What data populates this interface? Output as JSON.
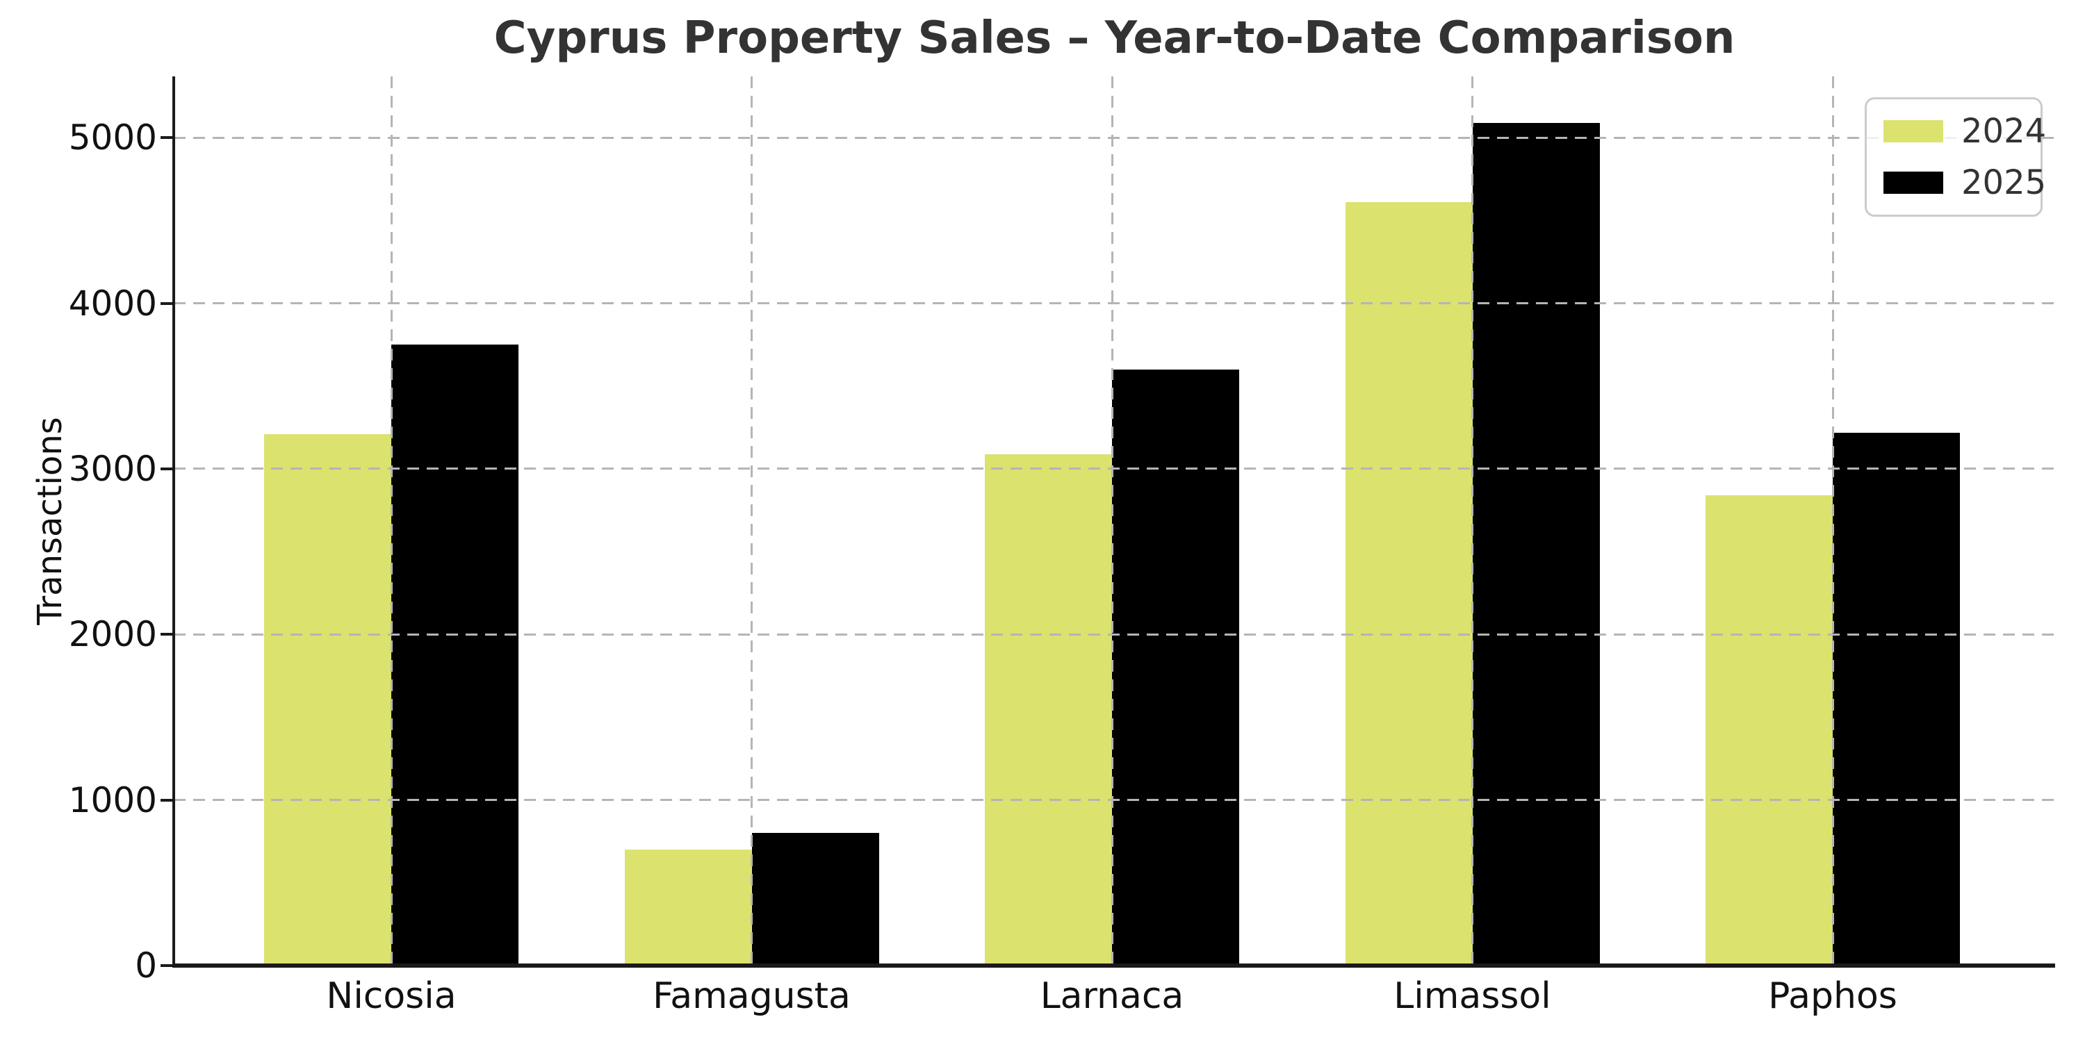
{
  "chart_data": {
    "type": "bar",
    "title": "Cyprus Property Sales – Year-to-Date Comparison",
    "ylabel": "Transactions",
    "xlabel": "",
    "categories": [
      "Nicosia",
      "Famagusta",
      "Larnaca",
      "Limassol",
      "Paphos"
    ],
    "series": [
      {
        "name": "2024",
        "color": "#dbe26e",
        "values": [
          3210,
          700,
          3090,
          4610,
          2840
        ]
      },
      {
        "name": "2025",
        "color": "#000000",
        "values": [
          3750,
          800,
          3600,
          5090,
          3220
        ]
      }
    ],
    "yticks": [
      0,
      1000,
      2000,
      3000,
      4000,
      5000
    ],
    "ylim": [
      0,
      5370
    ],
    "grid": "dashed, both horizontal and vertical, drawn above bars",
    "legend_position": "upper right",
    "colors": {
      "series_2024": "#dbe26e",
      "series_2025": "#000000",
      "gridline": "#b5b5b5",
      "title_text": "#333333",
      "axis_text": "#111111",
      "spine": "#1a1a1a",
      "legend_border": "#cccccc"
    }
  }
}
